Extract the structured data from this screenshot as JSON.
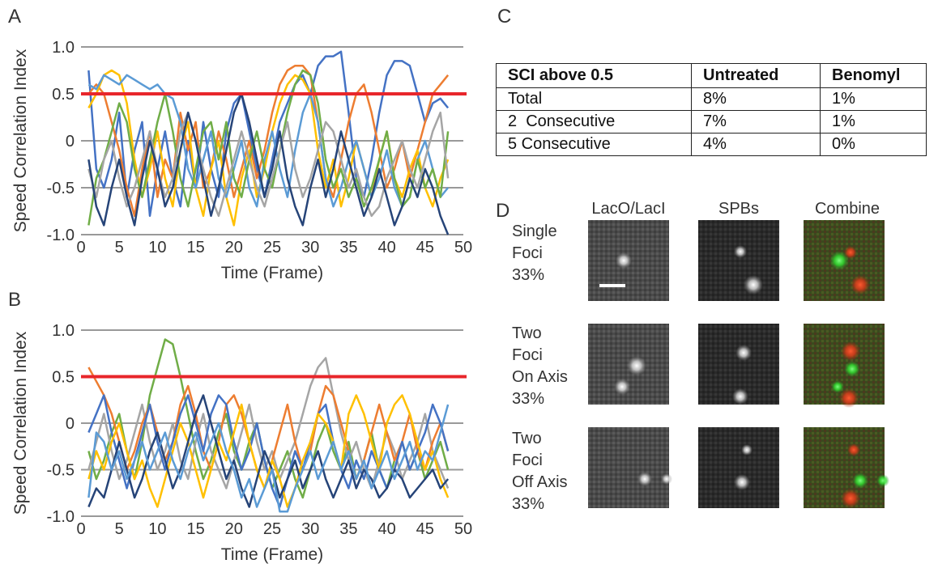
{
  "chart_data": [
    {
      "type": "line",
      "panel": "A",
      "ylabel": "Speed Correlation Index",
      "xlabel": "Time (Frame)",
      "xlim": [
        0,
        50
      ],
      "xticks": [
        0,
        5,
        10,
        15,
        20,
        25,
        30,
        35,
        40,
        45,
        50
      ],
      "ylim": [
        -1,
        1
      ],
      "yticks": [
        {
          "value": -1,
          "label": "-1.0"
        },
        -0.5,
        0,
        0.5,
        {
          "value": 1,
          "label": "1.0"
        }
      ],
      "grid": true,
      "threshold": 0.5,
      "threshold_color": "#e8262b",
      "x": [
        1,
        2,
        3,
        4,
        5,
        6,
        7,
        8,
        9,
        10,
        11,
        12,
        13,
        14,
        15,
        16,
        17,
        18,
        19,
        20,
        21,
        22,
        23,
        24,
        25,
        26,
        27,
        28,
        29,
        30,
        31,
        32,
        33,
        34,
        35,
        36,
        37,
        38,
        39,
        40,
        41,
        42,
        43,
        44,
        45,
        46,
        47,
        48
      ],
      "series": [
        {
          "color": "#4472c4",
          "values": [
            0.75,
            -0.3,
            -0.5,
            -0.2,
            0.3,
            -0.6,
            -0.1,
            0.2,
            -0.8,
            -0.3,
            0.1,
            -0.4,
            -0.7,
            0.0,
            -0.5,
            0.2,
            -0.3,
            -0.6,
            0.1,
            0.4,
            0.5,
            0.1,
            -0.3,
            -0.6,
            -0.2,
            0.2,
            0.4,
            0.6,
            0.7,
            0.5,
            0.8,
            0.9,
            0.9,
            0.95,
            0.3,
            -0.4,
            -0.6,
            -0.2,
            0.3,
            0.7,
            0.85,
            0.85,
            0.8,
            0.5,
            0.2,
            0.4,
            0.45,
            0.35
          ]
        },
        {
          "color": "#ed7d31",
          "values": [
            0.5,
            0.6,
            0.5,
            0.2,
            -0.1,
            -0.5,
            -0.8,
            -0.3,
            0.1,
            -0.6,
            -0.2,
            -0.4,
            0.3,
            -0.1,
            0.2,
            -0.5,
            -0.3,
            0.1,
            -0.2,
            -0.6,
            -0.3,
            0.0,
            -0.4,
            -0.1,
            0.3,
            0.6,
            0.75,
            0.8,
            0.8,
            0.7,
            0.2,
            -0.4,
            -0.6,
            -0.2,
            0.2,
            0.5,
            0.6,
            0.3,
            -0.1,
            -0.5,
            -0.3,
            0.0,
            -0.4,
            -0.1,
            0.2,
            0.5,
            0.6,
            0.7
          ]
        },
        {
          "color": "#ffc000",
          "values": [
            0.35,
            0.5,
            0.7,
            0.75,
            0.7,
            0.4,
            -0.2,
            -0.6,
            -0.3,
            0.1,
            -0.4,
            -0.7,
            -0.1,
            0.2,
            -0.5,
            -0.8,
            -0.3,
            0.0,
            -0.6,
            -0.9,
            -0.4,
            -0.1,
            -0.6,
            -0.3,
            0.1,
            0.4,
            0.6,
            0.7,
            0.65,
            0.5,
            -0.1,
            -0.5,
            -0.2,
            -0.7,
            -0.4,
            0.0,
            -0.3,
            -0.6,
            -0.2,
            0.1,
            -0.4,
            -0.6,
            -0.3,
            -0.1,
            -0.5,
            -0.7,
            -0.4,
            -0.2
          ]
        },
        {
          "color": "#5b9bd5",
          "values": [
            0.6,
            0.55,
            0.7,
            0.65,
            0.6,
            0.7,
            0.65,
            0.6,
            0.55,
            0.6,
            0.5,
            0.45,
            0.2,
            -0.3,
            -0.5,
            -0.2,
            0.1,
            -0.4,
            -0.6,
            -0.3,
            0.0,
            -0.5,
            -0.7,
            -0.2,
            0.1,
            -0.3,
            -0.6,
            -0.1,
            0.3,
            0.5,
            0.2,
            -0.4,
            -0.7,
            -0.5,
            -0.2,
            0.0,
            -0.3,
            -0.6,
            -0.4,
            -0.1,
            -0.5,
            -0.7,
            -0.6,
            -0.2,
            0.0,
            -0.3,
            -0.6,
            -0.5
          ]
        },
        {
          "color": "#70ad47",
          "values": [
            -0.9,
            -0.4,
            -0.2,
            0.1,
            0.4,
            0.2,
            -0.3,
            -0.6,
            -0.2,
            0.2,
            0.5,
            0.1,
            -0.4,
            -0.7,
            -0.3,
            0.1,
            0.2,
            -0.2,
            0.2,
            -0.4,
            -0.6,
            -0.2,
            0.1,
            -0.3,
            -0.5,
            -0.1,
            0.3,
            0.6,
            0.75,
            0.7,
            0.4,
            -0.2,
            -0.5,
            -0.3,
            -0.6,
            -0.4,
            -0.7,
            -0.5,
            -0.2,
            0.1,
            -0.4,
            -0.7,
            -0.6,
            -0.2,
            -0.5,
            -0.3,
            -0.6,
            0.1
          ]
        },
        {
          "color": "#a5a5a5",
          "values": [
            -0.3,
            -0.6,
            -0.2,
            0.0,
            -0.4,
            -0.7,
            -0.5,
            -0.2,
            0.1,
            -0.3,
            -0.6,
            -0.4,
            0.1,
            0.3,
            0.0,
            -0.3,
            -0.6,
            -0.8,
            -0.5,
            -0.2,
            0.1,
            -0.2,
            -0.5,
            -0.7,
            -0.4,
            -0.1,
            0.2,
            -0.3,
            -0.6,
            -0.4,
            -0.1,
            0.2,
            0.1,
            -0.2,
            -0.5,
            -0.3,
            -0.6,
            -0.8,
            -0.7,
            -0.4,
            -0.2,
            0.0,
            -0.3,
            -0.5,
            -0.2,
            0.1,
            0.3,
            -0.4
          ]
        },
        {
          "color": "#264478",
          "values": [
            -0.2,
            -0.7,
            -0.9,
            -0.5,
            -0.2,
            -0.6,
            -0.9,
            -0.4,
            0.0,
            -0.3,
            -0.7,
            -0.5,
            -0.1,
            0.3,
            0.0,
            -0.4,
            -0.8,
            -0.5,
            -0.1,
            0.3,
            0.5,
            0.2,
            -0.2,
            -0.6,
            -0.3,
            0.1,
            -0.4,
            -0.7,
            -0.9,
            -0.5,
            -0.2,
            -0.6,
            -0.3,
            0.1,
            -0.2,
            -0.5,
            -0.8,
            -0.6,
            -0.3,
            -0.6,
            -0.9,
            -0.7,
            -0.4,
            -0.6,
            -0.3,
            -0.5,
            -0.8,
            -1.0
          ]
        }
      ]
    },
    {
      "type": "line",
      "panel": "B",
      "ylabel": "Speed Correlation Index",
      "xlabel": "Time (Frame)",
      "xlim": [
        0,
        50
      ],
      "xticks": [
        0,
        5,
        10,
        15,
        20,
        25,
        30,
        35,
        40,
        45,
        50
      ],
      "ylim": [
        -1,
        1
      ],
      "yticks": [
        {
          "value": -1,
          "label": "-1.0"
        },
        -0.5,
        0,
        0.5,
        {
          "value": 1,
          "label": "1.0"
        }
      ],
      "grid": true,
      "threshold": 0.5,
      "threshold_color": "#e8262b",
      "x": [
        1,
        2,
        3,
        4,
        5,
        6,
        7,
        8,
        9,
        10,
        11,
        12,
        13,
        14,
        15,
        16,
        17,
        18,
        19,
        20,
        21,
        22,
        23,
        24,
        25,
        26,
        27,
        28,
        29,
        30,
        31,
        32,
        33,
        34,
        35,
        36,
        37,
        38,
        39,
        40,
        41,
        42,
        43,
        44,
        45,
        46,
        47,
        48
      ],
      "series": [
        {
          "color": "#70ad47",
          "values": [
            -0.3,
            -0.6,
            -0.4,
            -0.1,
            0.1,
            -0.3,
            -0.6,
            -0.2,
            0.3,
            0.6,
            0.9,
            0.85,
            0.5,
            0.1,
            -0.3,
            -0.6,
            -0.4,
            -0.1,
            0.1,
            -0.3,
            -0.5,
            -0.2,
            0.0,
            -0.4,
            -0.7,
            -0.5,
            -0.3,
            -0.6,
            -0.8,
            -0.5,
            -0.2,
            0.0,
            -0.3,
            -0.5,
            -0.2,
            -0.6,
            -0.4,
            -0.1,
            -0.5,
            -0.7,
            -0.4,
            -0.2,
            -0.5,
            -0.3,
            -0.6,
            -0.4,
            -0.2,
            -0.5
          ]
        },
        {
          "color": "#a5a5a5",
          "values": [
            -0.5,
            -0.2,
            0.1,
            -0.3,
            -0.6,
            -0.4,
            -0.1,
            0.2,
            -0.2,
            -0.5,
            -0.3,
            0.0,
            -0.4,
            -0.6,
            -0.2,
            0.1,
            -0.3,
            -0.5,
            -0.7,
            -0.4,
            -0.1,
            0.2,
            -0.2,
            -0.5,
            -0.3,
            -0.6,
            -0.4,
            -0.2,
            0.1,
            0.4,
            0.6,
            0.7,
            0.3,
            -0.1,
            -0.4,
            -0.2,
            -0.5,
            -0.7,
            -0.4,
            -0.1,
            -0.3,
            -0.6,
            -0.4,
            -0.2,
            0.1,
            -0.3,
            -0.5,
            -0.7
          ]
        },
        {
          "color": "#ed7d31",
          "values": [
            0.6,
            0.45,
            0.3,
            0.1,
            -0.2,
            -0.5,
            -0.3,
            0.0,
            0.2,
            -0.1,
            -0.4,
            -0.2,
            0.2,
            0.4,
            0.1,
            -0.3,
            -0.5,
            -0.2,
            0.2,
            0.3,
            0.1,
            -0.2,
            -0.5,
            -0.7,
            -0.4,
            -0.1,
            0.2,
            -0.2,
            -0.5,
            -0.3,
            0.1,
            0.4,
            0.3,
            0.0,
            -0.3,
            -0.6,
            -0.4,
            -0.1,
            0.2,
            -0.1,
            -0.4,
            -0.2,
            0.1,
            -0.3,
            -0.5,
            -0.2,
            0.0,
            -0.3
          ]
        },
        {
          "color": "#4472c4",
          "values": [
            -0.1,
            0.1,
            0.3,
            -0.1,
            -0.4,
            -0.7,
            -0.4,
            -0.1,
            0.2,
            -0.2,
            -0.5,
            -0.2,
            0.1,
            0.3,
            0.0,
            -0.3,
            0.1,
            0.3,
            0.2,
            -0.2,
            -0.5,
            -0.3,
            0.0,
            -0.4,
            -0.7,
            -0.9,
            -0.6,
            -0.3,
            -0.5,
            -0.2,
            0.1,
            0.2,
            -0.2,
            -0.5,
            -0.7,
            -0.4,
            -0.6,
            -0.3,
            -0.5,
            -0.7,
            -0.5,
            -0.2,
            -0.5,
            -0.3,
            -0.1,
            0.2,
            0.0,
            -0.3
          ]
        },
        {
          "color": "#ffc000",
          "values": [
            -0.6,
            -0.3,
            -0.5,
            -0.2,
            0.0,
            -0.3,
            -0.6,
            -0.4,
            -0.7,
            -0.9,
            -0.6,
            -0.3,
            0.0,
            -0.2,
            -0.5,
            -0.8,
            -0.5,
            -0.2,
            -0.4,
            -0.1,
            0.2,
            -0.2,
            -0.5,
            -0.7,
            -0.4,
            -0.6,
            -0.9,
            -0.7,
            -0.4,
            -0.2,
            0.1,
            0.0,
            -0.2,
            -0.5,
            0.1,
            0.3,
            0.1,
            -0.2,
            -0.5,
            0.0,
            0.2,
            0.3,
            0.1,
            -0.2,
            -0.5,
            -0.3,
            -0.6,
            -0.8
          ]
        },
        {
          "color": "#264478",
          "values": [
            -0.9,
            -0.7,
            -0.8,
            -0.5,
            -0.2,
            -0.5,
            -0.8,
            -0.6,
            -0.3,
            -0.1,
            -0.4,
            -0.7,
            -0.5,
            -0.2,
            0.1,
            0.3,
            0.0,
            -0.3,
            -0.6,
            -0.4,
            -0.7,
            -0.9,
            -0.6,
            -0.3,
            -0.5,
            -0.8,
            -0.6,
            -0.4,
            -0.7,
            -0.5,
            -0.3,
            -0.6,
            -0.8,
            -0.6,
            -0.4,
            -0.7,
            -0.5,
            -0.6,
            -0.8,
            -0.7,
            -0.5,
            -0.6,
            -0.8,
            -0.7,
            -0.6,
            -0.5,
            -0.7,
            -0.6
          ]
        },
        {
          "color": "#5b9bd5",
          "values": [
            -0.8,
            -0.1,
            -0.2,
            -0.5,
            -0.3,
            -0.6,
            -0.4,
            -0.2,
            -0.5,
            -0.3,
            -0.1,
            -0.4,
            -0.6,
            -0.3,
            -0.1,
            -0.4,
            -0.2,
            0.0,
            -0.3,
            -0.5,
            -0.8,
            -0.6,
            -0.9,
            -0.7,
            -0.5,
            -0.95,
            -0.95,
            -0.7,
            -0.5,
            -0.3,
            -0.6,
            -0.4,
            -0.2,
            -0.5,
            -0.3,
            -0.6,
            -0.4,
            -0.7,
            -0.5,
            -0.3,
            -0.6,
            -0.4,
            -0.2,
            -0.5,
            -0.3,
            -0.4,
            -0.1,
            0.2
          ]
        }
      ]
    }
  ],
  "panel_c": {
    "label": "C",
    "header": [
      "SCI above 0.5",
      "Untreated",
      "Benomyl"
    ],
    "rows": [
      [
        "Total",
        "8%",
        "1%"
      ],
      [
        "2  Consecutive",
        "7%",
        "1%"
      ],
      [
        "5 Consecutive",
        "4%",
        "0%"
      ]
    ]
  },
  "panel_d": {
    "label": "D",
    "columns": [
      "LacO/LacI",
      "SPBs",
      "Combine"
    ],
    "rows": [
      {
        "label": [
          "Single",
          "Foci",
          "33%"
        ]
      },
      {
        "label": [
          "Two",
          "Foci",
          "On Axis",
          "33%"
        ]
      },
      {
        "label": [
          "Two",
          "Foci",
          "Off Axis",
          "33%"
        ]
      }
    ]
  }
}
